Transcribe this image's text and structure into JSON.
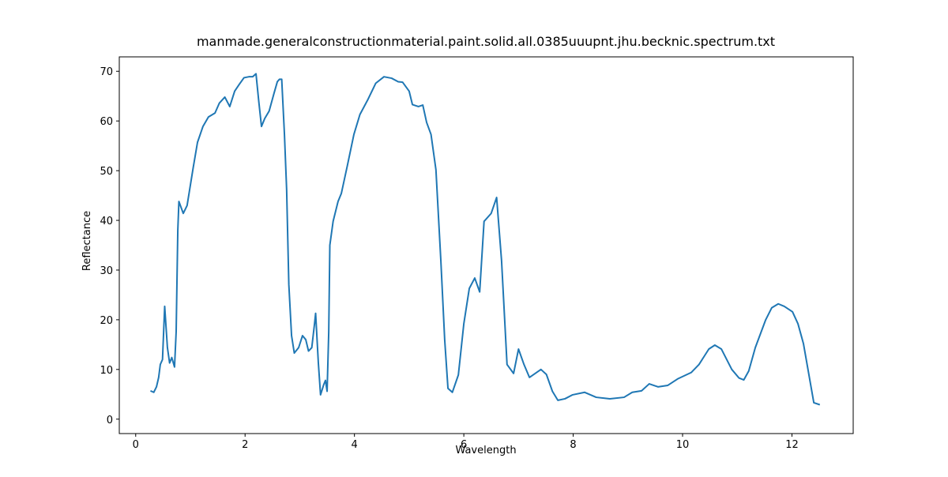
{
  "chart_data": {
    "type": "line",
    "title": "manmade.generalconstructionmaterial.paint.solid.all.0385uuupnt.jhu.becknic.spectrum.txt",
    "x_label": "Wavelength",
    "y_label": "Reflectance",
    "xlim": [
      -0.3,
      13.12
    ],
    "ylim": [
      -2.9,
      72.9
    ],
    "xticks": [
      0,
      2,
      4,
      6,
      8,
      10,
      12
    ],
    "yticks": [
      0,
      10,
      20,
      30,
      40,
      50,
      60,
      70
    ],
    "series": [
      {
        "color": "#1f77b4",
        "x": [
          0.27,
          0.33,
          0.38,
          0.42,
          0.45,
          0.49,
          0.53,
          0.58,
          0.62,
          0.66,
          0.71,
          0.74,
          0.77,
          0.79,
          0.87,
          0.94,
          1.05,
          1.13,
          1.23,
          1.33,
          1.45,
          1.53,
          1.63,
          1.72,
          1.81,
          1.89,
          1.98,
          2.07,
          2.14,
          2.2,
          2.25,
          2.3,
          2.36,
          2.44,
          2.53,
          2.59,
          2.63,
          2.67,
          2.72,
          2.76,
          2.8,
          2.85,
          2.9,
          2.98,
          3.05,
          3.11,
          3.16,
          3.22,
          3.27,
          3.29,
          3.34,
          3.38,
          3.44,
          3.47,
          3.5,
          3.53,
          3.55,
          3.61,
          3.7,
          3.76,
          3.87,
          3.99,
          4.1,
          4.25,
          4.39,
          4.54,
          4.68,
          4.8,
          4.88,
          5.0,
          5.06,
          5.17,
          5.25,
          5.32,
          5.4,
          5.49,
          5.58,
          5.65,
          5.71,
          5.79,
          5.9,
          6.0,
          6.1,
          6.2,
          6.29,
          6.37,
          6.5,
          6.6,
          6.69,
          6.79,
          6.91,
          7.0,
          7.1,
          7.2,
          7.41,
          7.51,
          7.62,
          7.72,
          7.85,
          7.99,
          8.21,
          8.42,
          8.67,
          8.93,
          9.08,
          9.25,
          9.39,
          9.55,
          9.73,
          9.91,
          10.16,
          10.3,
          10.48,
          10.59,
          10.71,
          10.9,
          11.03,
          11.12,
          11.21,
          11.33,
          11.52,
          11.63,
          11.75,
          11.86,
          12.01,
          12.11,
          12.21,
          12.4,
          12.51
        ],
        "values": [
          5.7,
          5.4,
          6.5,
          8.4,
          11,
          12,
          22.7,
          14.4,
          11.3,
          12.4,
          10.5,
          17.6,
          38,
          43.8,
          41.4,
          43,
          50.5,
          55.7,
          58.9,
          60.8,
          61.6,
          63.6,
          64.8,
          62.9,
          66,
          67.3,
          68.7,
          68.9,
          68.9,
          69.5,
          64,
          58.9,
          60.5,
          62,
          65.6,
          67.9,
          68.4,
          68.4,
          57.3,
          46.2,
          27.1,
          16.8,
          13.3,
          14.4,
          16.8,
          16,
          13.7,
          14.4,
          19.2,
          21.3,
          11.3,
          4.9,
          7,
          7.8,
          5.6,
          17.6,
          35,
          39.8,
          43.8,
          45.4,
          51,
          57.3,
          61.3,
          64.4,
          67.6,
          68.9,
          68.6,
          67.9,
          67.8,
          66,
          63.3,
          62.9,
          63.2,
          59.7,
          57.3,
          50.2,
          31.9,
          16,
          6.2,
          5.4,
          8.9,
          19.2,
          26.3,
          28.4,
          25.6,
          39.8,
          41.4,
          44.6,
          31.9,
          11,
          9.2,
          14.1,
          11,
          8.4,
          10,
          9,
          5.6,
          3.8,
          4.1,
          4.9,
          5.4,
          4.4,
          4.1,
          4.4,
          5.4,
          5.7,
          7.1,
          6.5,
          6.8,
          8.1,
          9.4,
          11,
          14.1,
          14.9,
          14.1,
          10,
          8.3,
          7.9,
          9.7,
          14.4,
          20,
          22.4,
          23.2,
          22.7,
          21.6,
          19.2,
          15.2,
          3.3,
          2.9
        ]
      }
    ]
  }
}
